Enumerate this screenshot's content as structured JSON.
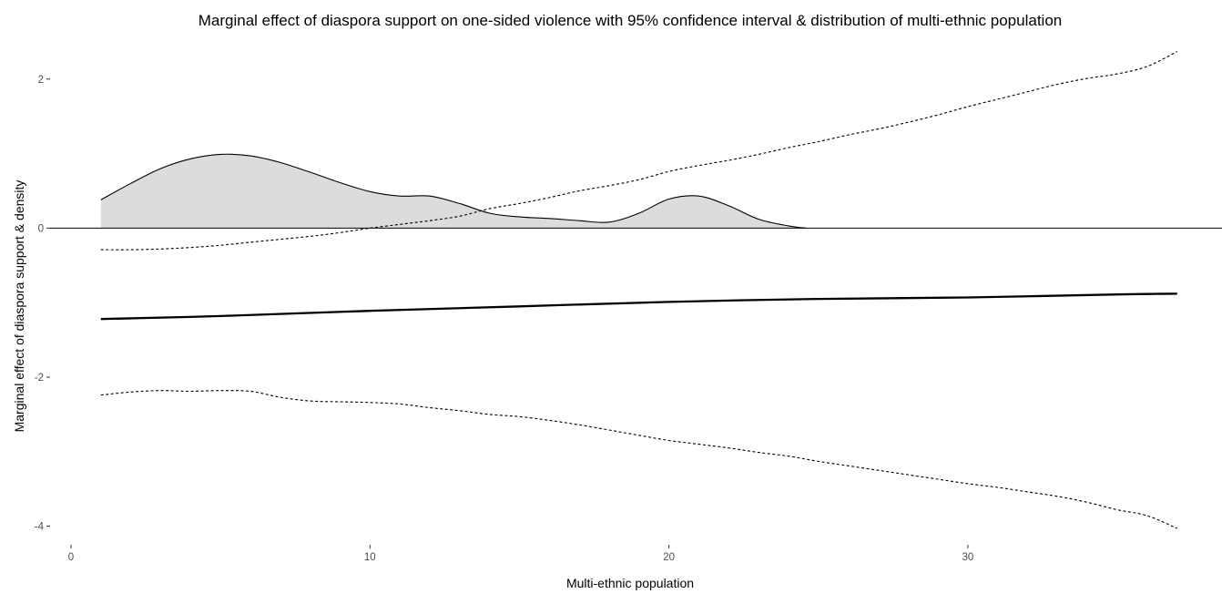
{
  "chart_data": {
    "type": "line",
    "title": "Marginal effect of diaspora support on one-sided violence with 95% confidence interval & distribution of multi-ethnic population",
    "xlabel": "Multi-ethnic population",
    "ylabel": "Marginal effect of diaspora support & density",
    "xlim": [
      -0.7,
      38.5
    ],
    "ylim": [
      -4.25,
      2.45
    ],
    "x_ticks": [
      {
        "value": 0,
        "label": "0"
      },
      {
        "value": 10,
        "label": "10"
      },
      {
        "value": 20,
        "label": "20"
      },
      {
        "value": 30,
        "label": "30"
      }
    ],
    "y_ticks": [
      {
        "value": 2,
        "label": "2"
      },
      {
        "value": 0,
        "label": "0"
      },
      {
        "value": -2,
        "label": "-2"
      },
      {
        "value": -4,
        "label": "-4"
      }
    ],
    "grid": false,
    "legend": "none",
    "reference_line_y": 0,
    "series": [
      {
        "role": "marginal-effect",
        "style": "solid-thick",
        "points": [
          [
            1,
            -1.22
          ],
          [
            5,
            -1.18
          ],
          [
            10,
            -1.11
          ],
          [
            15,
            -1.05
          ],
          [
            20,
            -0.99
          ],
          [
            25,
            -0.95
          ],
          [
            30,
            -0.93
          ],
          [
            35,
            -0.89
          ],
          [
            37,
            -0.88
          ]
        ]
      },
      {
        "role": "upper-ci",
        "style": "dashed",
        "points": [
          [
            1,
            -0.29
          ],
          [
            2,
            -0.29
          ],
          [
            3,
            -0.28
          ],
          [
            4,
            -0.26
          ],
          [
            5,
            -0.23
          ],
          [
            6,
            -0.19
          ],
          [
            7,
            -0.15
          ],
          [
            8,
            -0.11
          ],
          [
            9,
            -0.06
          ],
          [
            10,
            0.0
          ],
          [
            11,
            0.05
          ],
          [
            12,
            0.1
          ],
          [
            13,
            0.16
          ],
          [
            14,
            0.26
          ],
          [
            15,
            0.33
          ],
          [
            16,
            0.41
          ],
          [
            17,
            0.5
          ],
          [
            18,
            0.57
          ],
          [
            19,
            0.65
          ],
          [
            20,
            0.76
          ],
          [
            21,
            0.84
          ],
          [
            22,
            0.91
          ],
          [
            23,
            0.99
          ],
          [
            24,
            1.08
          ],
          [
            25,
            1.16
          ],
          [
            26,
            1.25
          ],
          [
            27,
            1.33
          ],
          [
            28,
            1.42
          ],
          [
            29,
            1.52
          ],
          [
            30,
            1.63
          ],
          [
            31,
            1.73
          ],
          [
            32,
            1.83
          ],
          [
            33,
            1.93
          ],
          [
            34,
            2.01
          ],
          [
            35,
            2.07
          ],
          [
            36,
            2.17
          ],
          [
            37,
            2.37
          ]
        ]
      },
      {
        "role": "lower-ci",
        "style": "dashed",
        "points": [
          [
            1,
            -2.24
          ],
          [
            2,
            -2.2
          ],
          [
            3,
            -2.18
          ],
          [
            4,
            -2.19
          ],
          [
            5,
            -2.18
          ],
          [
            6,
            -2.19
          ],
          [
            7,
            -2.27
          ],
          [
            8,
            -2.32
          ],
          [
            9,
            -2.33
          ],
          [
            10,
            -2.34
          ],
          [
            11,
            -2.36
          ],
          [
            12,
            -2.41
          ],
          [
            13,
            -2.45
          ],
          [
            14,
            -2.5
          ],
          [
            15,
            -2.53
          ],
          [
            16,
            -2.58
          ],
          [
            17,
            -2.64
          ],
          [
            18,
            -2.71
          ],
          [
            19,
            -2.78
          ],
          [
            20,
            -2.85
          ],
          [
            21,
            -2.9
          ],
          [
            22,
            -2.95
          ],
          [
            23,
            -3.01
          ],
          [
            24,
            -3.06
          ],
          [
            25,
            -3.13
          ],
          [
            26,
            -3.19
          ],
          [
            27,
            -3.25
          ],
          [
            28,
            -3.31
          ],
          [
            29,
            -3.37
          ],
          [
            30,
            -3.43
          ],
          [
            31,
            -3.48
          ],
          [
            32,
            -3.54
          ],
          [
            33,
            -3.6
          ],
          [
            34,
            -3.68
          ],
          [
            35,
            -3.78
          ],
          [
            36,
            -3.86
          ],
          [
            37,
            -4.03
          ]
        ]
      }
    ],
    "density": {
      "fill": "#dcdcdc",
      "points": [
        [
          1,
          0.38
        ],
        [
          2,
          0.6
        ],
        [
          3,
          0.8
        ],
        [
          4,
          0.93
        ],
        [
          5,
          0.99
        ],
        [
          6,
          0.97
        ],
        [
          7,
          0.88
        ],
        [
          8,
          0.75
        ],
        [
          9,
          0.61
        ],
        [
          10,
          0.49
        ],
        [
          11,
          0.43
        ],
        [
          12,
          0.43
        ],
        [
          13,
          0.33
        ],
        [
          14,
          0.2
        ],
        [
          15,
          0.15
        ],
        [
          16,
          0.13
        ],
        [
          17,
          0.1
        ],
        [
          18,
          0.08
        ],
        [
          19,
          0.2
        ],
        [
          20,
          0.39
        ],
        [
          21,
          0.43
        ],
        [
          22,
          0.3
        ],
        [
          23,
          0.12
        ],
        [
          24,
          0.03
        ],
        [
          24.6,
          0.0
        ]
      ]
    }
  }
}
